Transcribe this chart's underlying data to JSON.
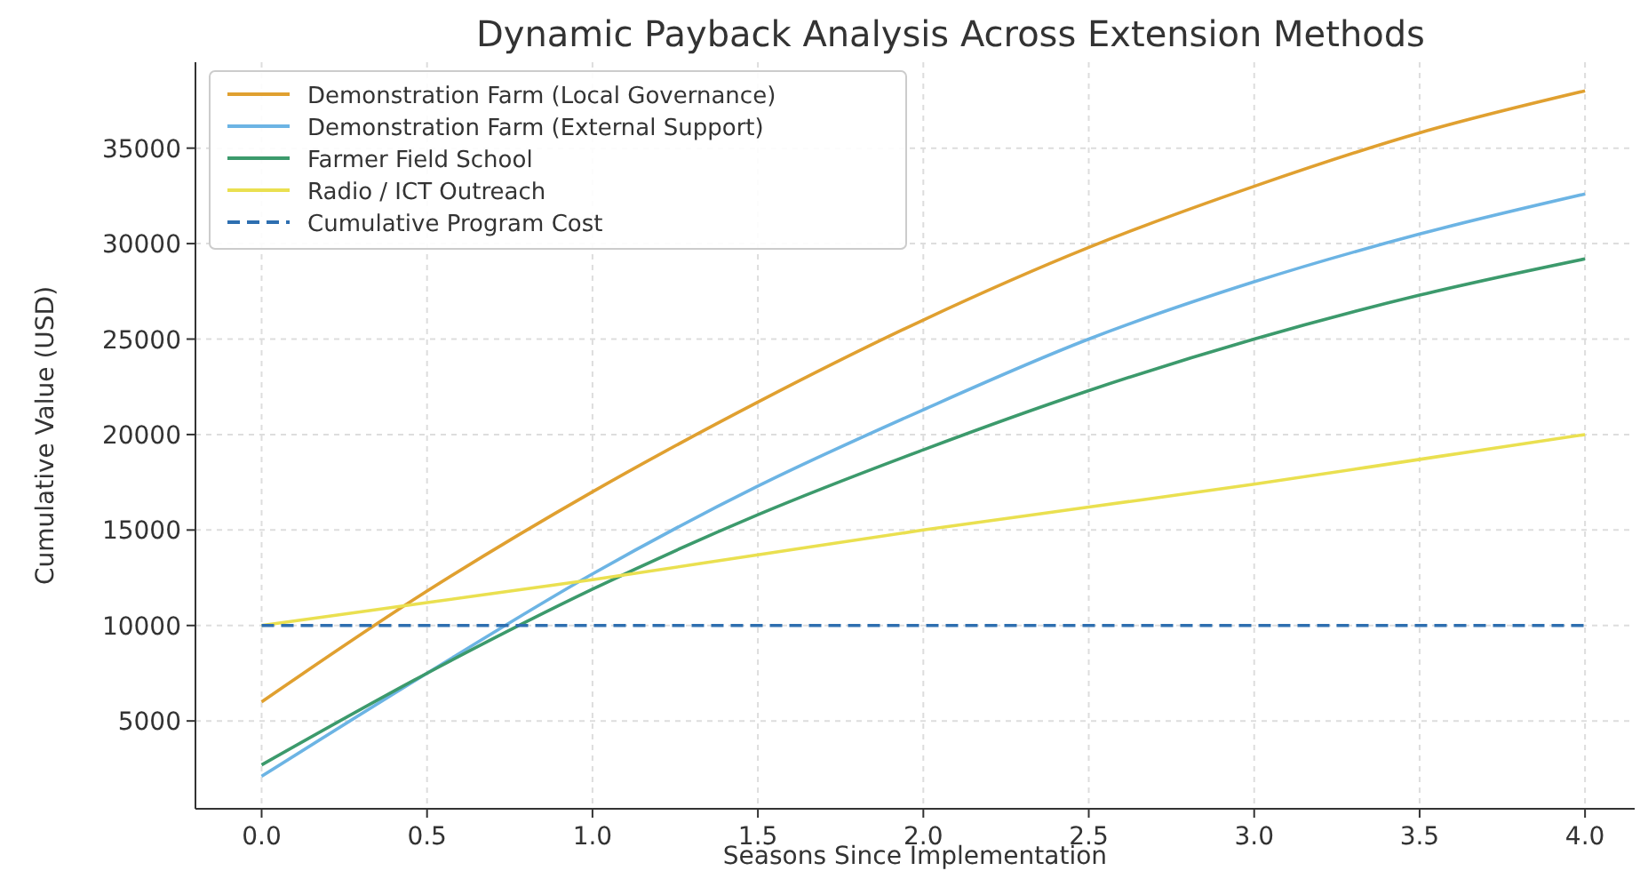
{
  "chart_data": {
    "type": "line",
    "title": "Dynamic Payback Analysis Across Extension Methods",
    "xlabel": "Seasons Since Implementation",
    "ylabel": "Cumulative Value (USD)",
    "x": [
      0,
      0.5,
      1,
      1.5,
      2,
      2.5,
      3,
      3.5,
      4
    ],
    "series": [
      {
        "name": "Demonstration Farm (Local Governance)",
        "color": "#e0a030",
        "values": [
          6000,
          11800,
          17000,
          21700,
          26000,
          29800,
          33000,
          35800,
          38000
        ]
      },
      {
        "name": "Demonstration Farm (External Support)",
        "color": "#6cb4e4",
        "values": [
          2100,
          7500,
          12700,
          17300,
          21300,
          25000,
          28000,
          30500,
          32600
        ]
      },
      {
        "name": "Farmer Field School",
        "color": "#3c9a6c",
        "values": [
          2700,
          7500,
          11900,
          15800,
          19200,
          22300,
          25000,
          27300,
          29200
        ]
      },
      {
        "name": "Radio / ICT Outreach",
        "color": "#eae050",
        "values": [
          10000,
          11200,
          12400,
          13700,
          15000,
          16200,
          17400,
          18700,
          20000
        ]
      },
      {
        "name": "Cumulative Program Cost",
        "color": "#2e6fb0",
        "line_style": "dashed",
        "values": [
          10000,
          10000,
          10000,
          10000,
          10000,
          10000,
          10000,
          10000,
          10000
        ]
      }
    ],
    "xlim": [
      -0.2,
      4.15
    ],
    "ylim": [
      400,
      39500
    ],
    "xticks": [
      {
        "value": 0,
        "label": "0.0"
      },
      {
        "value": 0.5,
        "label": "0.5"
      },
      {
        "value": 1,
        "label": "1.0"
      },
      {
        "value": 1.5,
        "label": "1.5"
      },
      {
        "value": 2,
        "label": "2.0"
      },
      {
        "value": 2.5,
        "label": "2.5"
      },
      {
        "value": 3,
        "label": "3.0"
      },
      {
        "value": 3.5,
        "label": "3.5"
      },
      {
        "value": 4,
        "label": "4.0"
      }
    ],
    "yticks": [
      5000,
      10000,
      15000,
      20000,
      25000,
      30000,
      35000
    ],
    "grid": true,
    "legend": "top left",
    "marker": "none",
    "line_style": "solid"
  }
}
